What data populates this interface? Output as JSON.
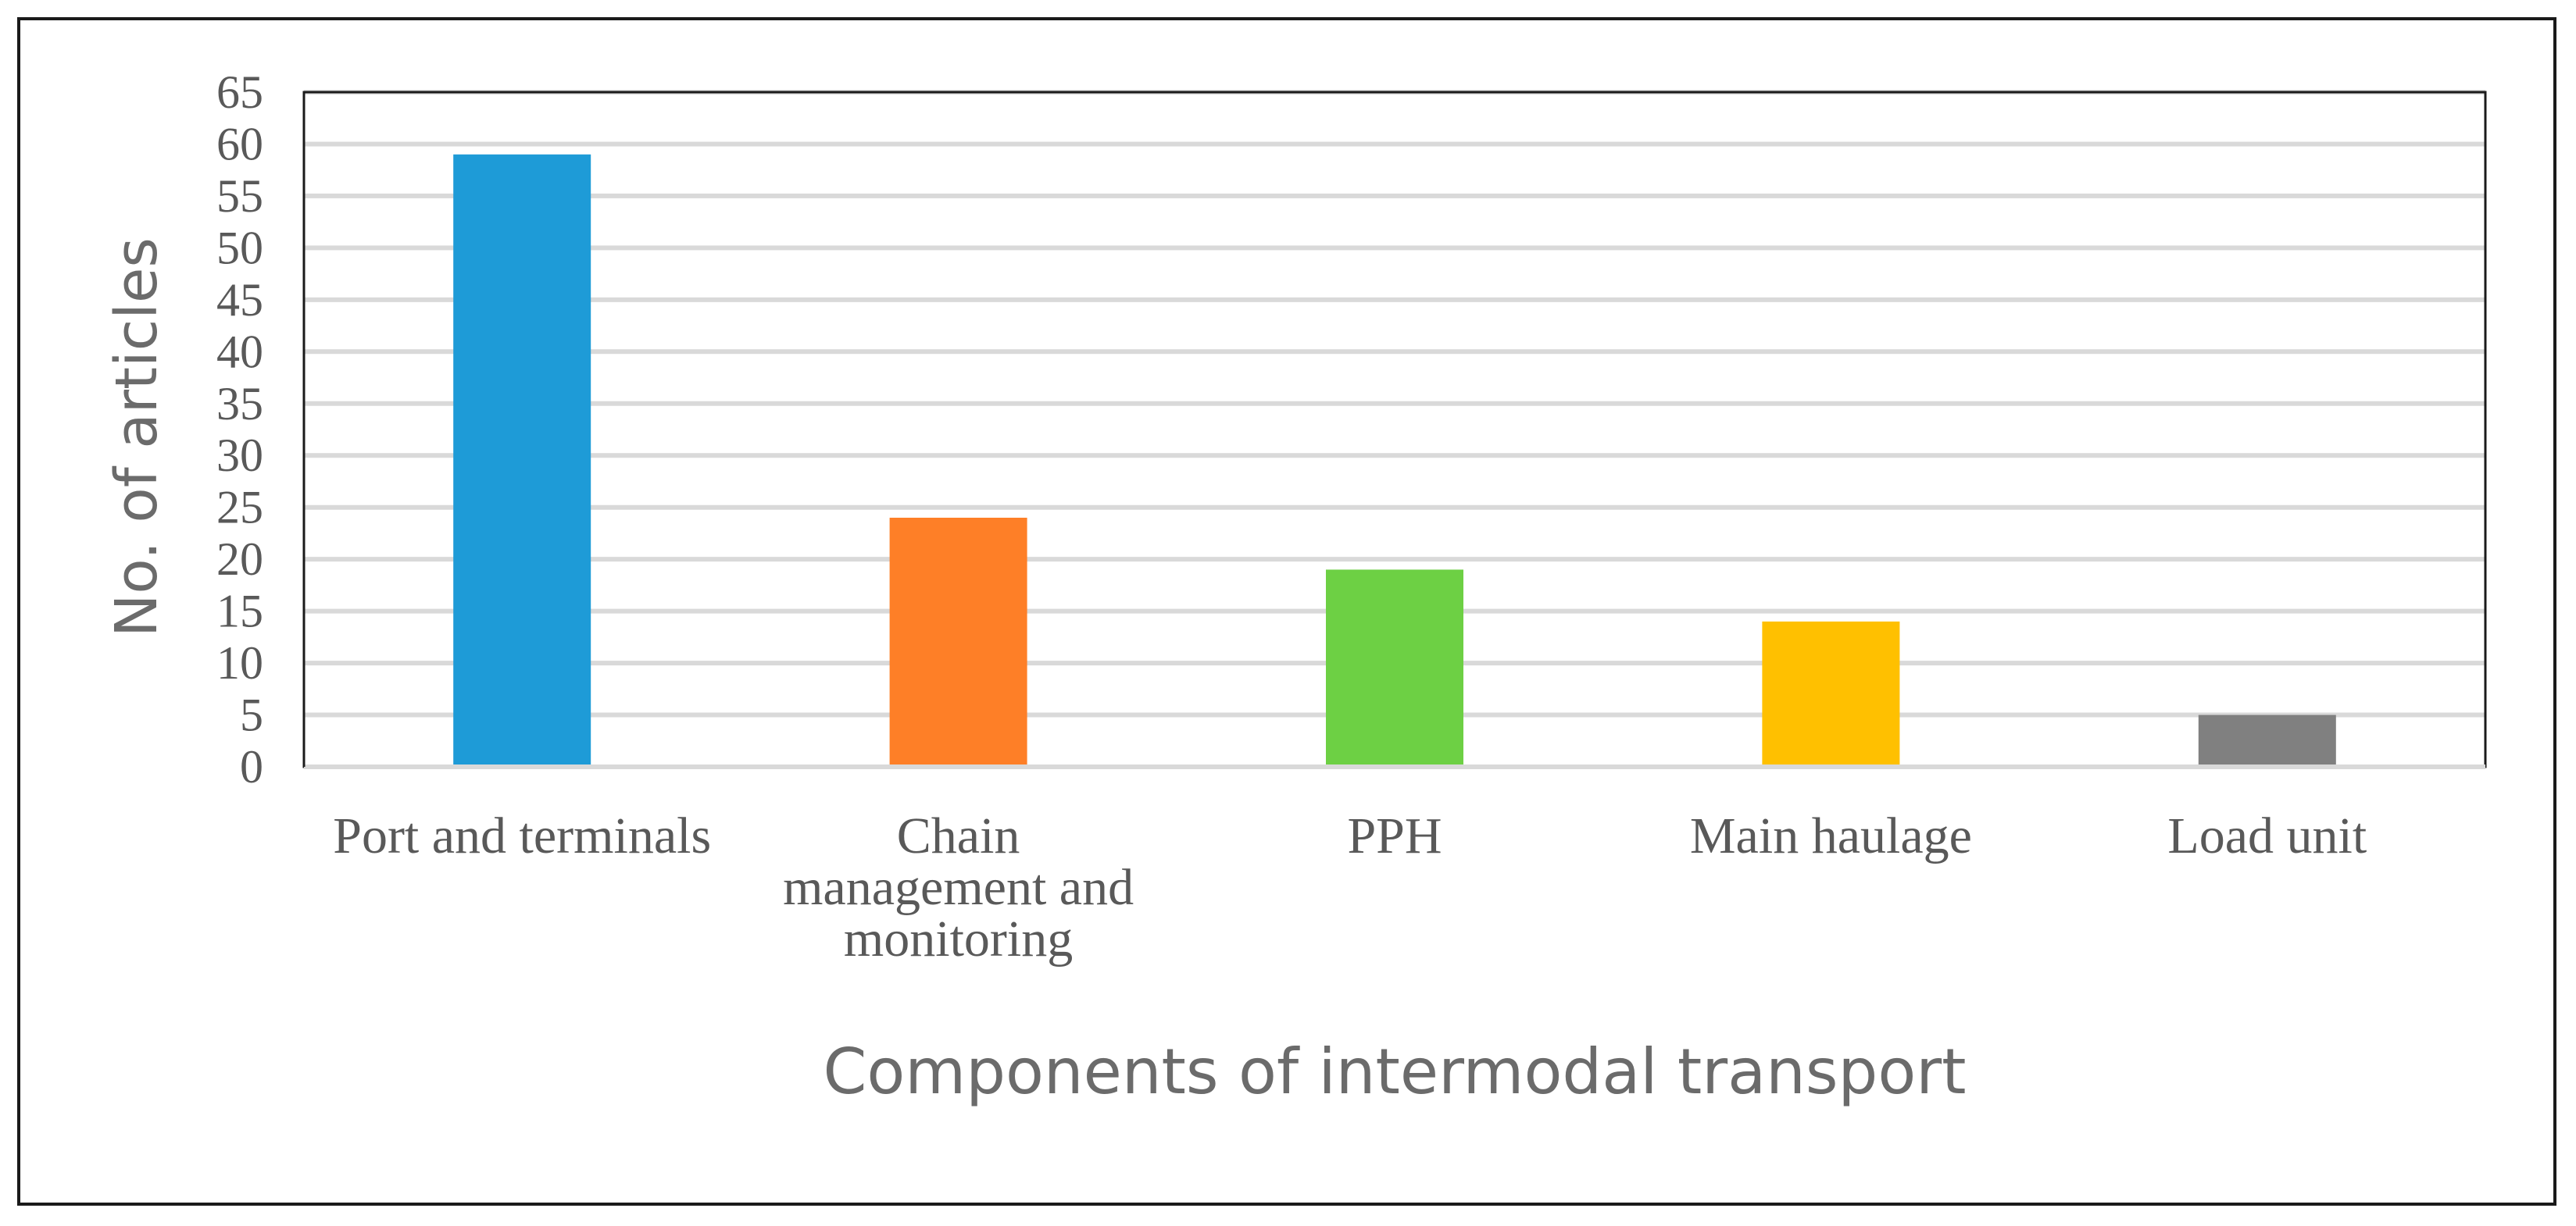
{
  "chart_data": {
    "type": "bar",
    "title": "",
    "xlabel": "Components of intermodal transport",
    "ylabel": "No. of articles",
    "categories": [
      [
        "Port and terminals"
      ],
      [
        "Chain",
        "management and",
        "monitoring"
      ],
      [
        "PPH"
      ],
      [
        "Main haulage"
      ],
      [
        "Load unit"
      ]
    ],
    "values": [
      59,
      24,
      19,
      14,
      5
    ],
    "colors": [
      "#1e9bd7",
      "#fe7f27",
      "#6dd044",
      "#ffc000",
      "#808080"
    ],
    "ylim": [
      0,
      65
    ],
    "yticks": [
      0,
      5,
      10,
      15,
      20,
      25,
      30,
      35,
      40,
      45,
      50,
      55,
      60,
      65
    ],
    "grid": true,
    "legend": "none"
  }
}
